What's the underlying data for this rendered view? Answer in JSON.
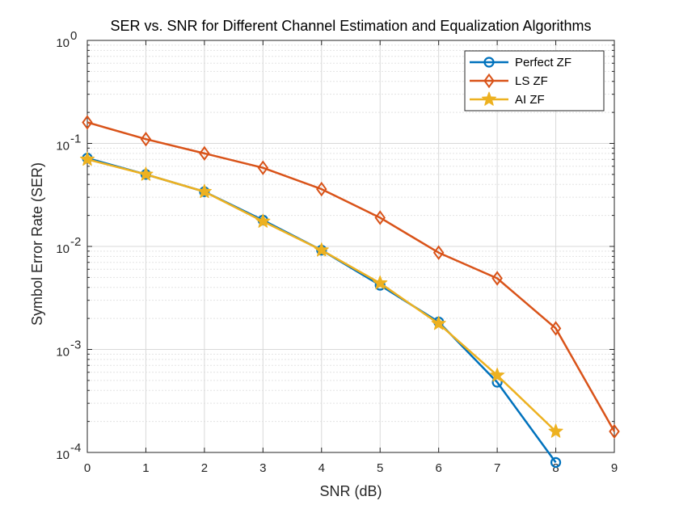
{
  "chart_data": {
    "type": "line",
    "title": "SER vs. SNR for Different Channel Estimation and Equalization Algorithms",
    "xlabel": "SNR (dB)",
    "ylabel": "Symbol Error Rate (SER)",
    "xlim": [
      0,
      9
    ],
    "ylim": [
      0.0001,
      1
    ],
    "yscale": "log",
    "grid": true,
    "minor_grid": true,
    "legend_position": "top-right",
    "x_ticks": [
      {
        "value": 0,
        "label": "0"
      },
      {
        "value": 1,
        "label": "1"
      },
      {
        "value": 2,
        "label": "2"
      },
      {
        "value": 3,
        "label": "3"
      },
      {
        "value": 4,
        "label": "4"
      },
      {
        "value": 5,
        "label": "5"
      },
      {
        "value": 6,
        "label": "6"
      },
      {
        "value": 7,
        "label": "7"
      },
      {
        "value": 8,
        "label": "8"
      },
      {
        "value": 9,
        "label": "9"
      }
    ],
    "y_ticks": [
      {
        "value": 0.0001,
        "base": "10",
        "exp": "-4"
      },
      {
        "value": 0.001,
        "base": "10",
        "exp": "-3"
      },
      {
        "value": 0.01,
        "base": "10",
        "exp": "-2"
      },
      {
        "value": 0.1,
        "base": "10",
        "exp": "-1"
      },
      {
        "value": 1,
        "base": "10",
        "exp": "0"
      }
    ],
    "series": [
      {
        "name": "Perfect ZF",
        "color": "#0072BD",
        "marker": "circle",
        "x": [
          0,
          1,
          2,
          3,
          4,
          5,
          6,
          7,
          8
        ],
        "y": [
          0.072,
          0.05,
          0.034,
          0.018,
          0.0092,
          0.0042,
          0.00185,
          0.00048,
          8e-05
        ]
      },
      {
        "name": "LS ZF",
        "color": "#D95319",
        "marker": "diamond",
        "x": [
          0,
          1,
          2,
          3,
          4,
          5,
          6,
          7,
          8,
          9
        ],
        "y": [
          0.16,
          0.11,
          0.08,
          0.058,
          0.036,
          0.019,
          0.0087,
          0.0049,
          0.0016,
          0.00016
        ]
      },
      {
        "name": "AI ZF",
        "color": "#EDB120",
        "marker": "star",
        "x": [
          0,
          1,
          2,
          3,
          4,
          5,
          6,
          7,
          8
        ],
        "y": [
          0.07,
          0.05,
          0.034,
          0.0175,
          0.0092,
          0.0044,
          0.00178,
          0.00056,
          0.00016
        ]
      }
    ]
  }
}
